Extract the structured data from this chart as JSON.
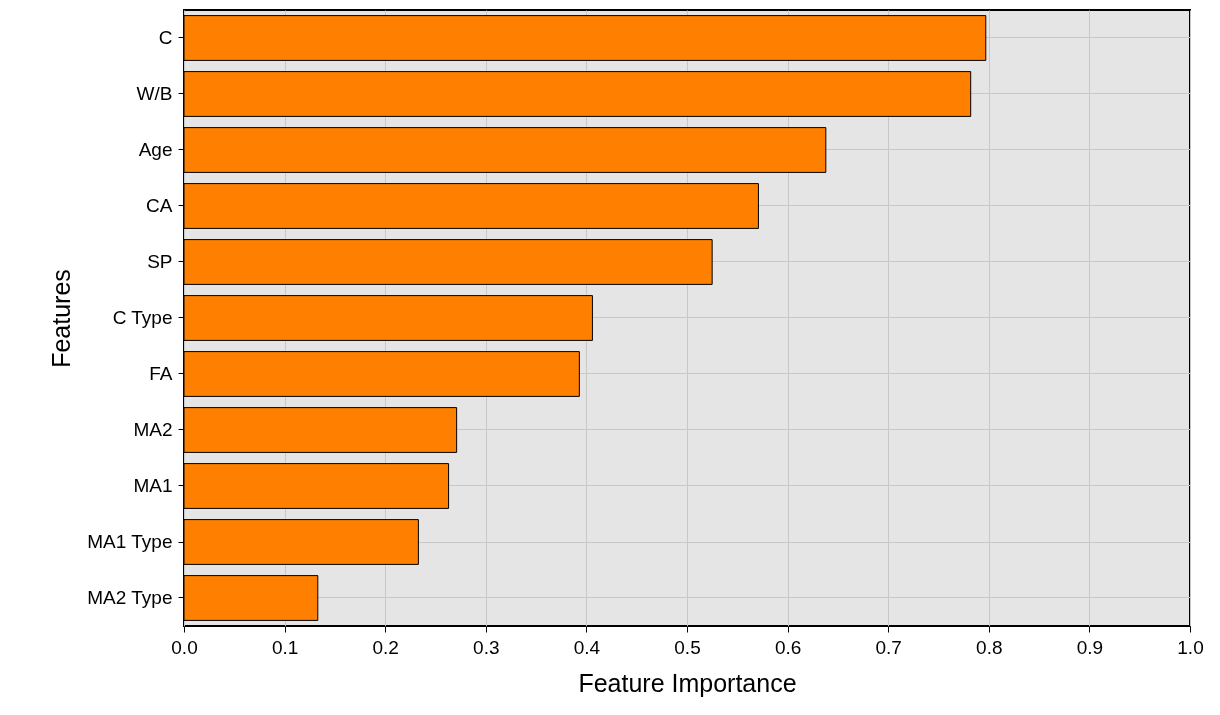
{
  "chart_data": {
    "type": "bar",
    "orientation": "horizontal",
    "xlabel": "Feature Importance",
    "ylabel": "Features",
    "categories": [
      "C",
      "W/B",
      "Age",
      "CA",
      "SP",
      "C Type",
      "FA",
      "MA2",
      "MA1",
      "MA1 Type",
      "MA2 Type"
    ],
    "values": [
      0.797,
      0.782,
      0.638,
      0.571,
      0.525,
      0.406,
      0.393,
      0.271,
      0.263,
      0.233,
      0.133
    ],
    "color": "#ff7f00",
    "xlim": [
      0,
      1
    ],
    "xticks": [
      {
        "value": 0,
        "label": "0.0"
      },
      0.1,
      0.2,
      0.3,
      0.4,
      0.5,
      0.6,
      0.7,
      0.8,
      0.9,
      {
        "value": 1,
        "label": "1.0"
      }
    ],
    "grid": true
  }
}
